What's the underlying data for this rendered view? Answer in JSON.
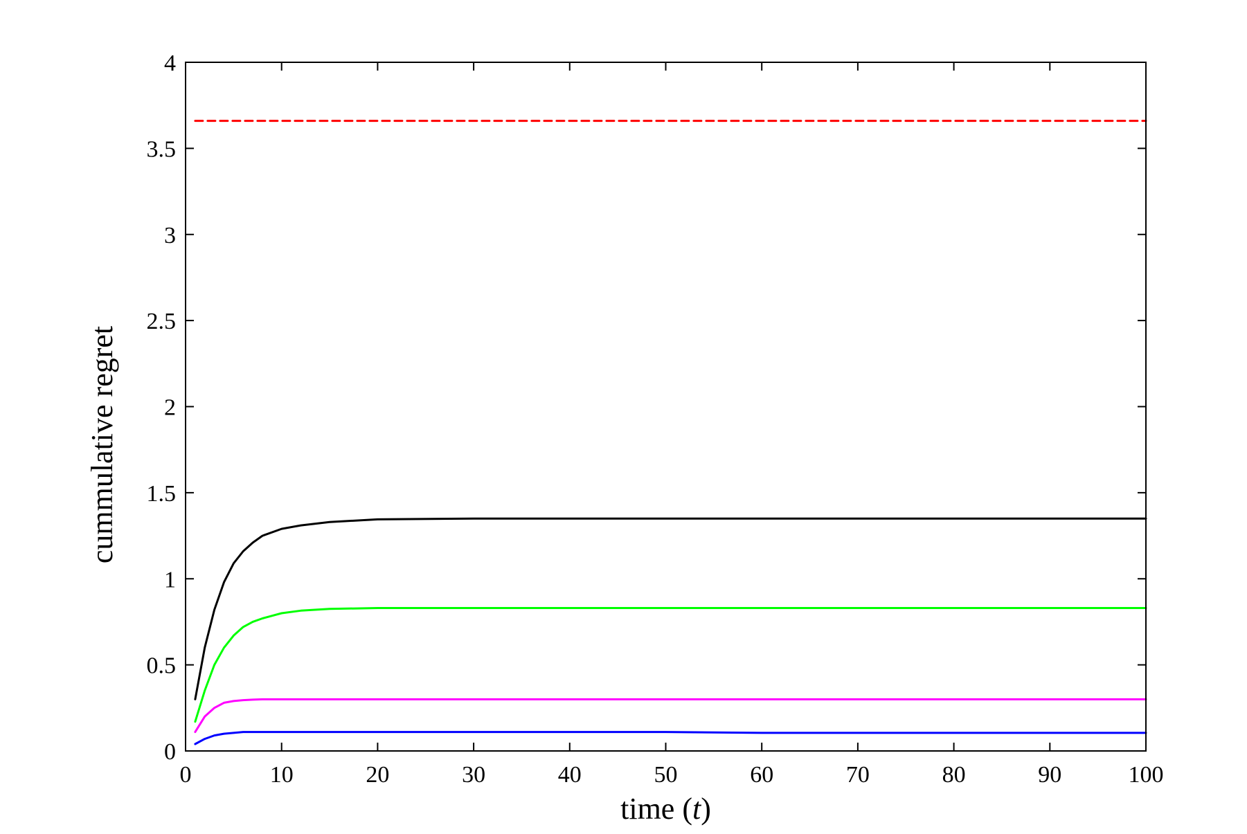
{
  "chart_data": {
    "type": "line",
    "title": "",
    "xlabel": "time (t)",
    "xlabel_parts": {
      "prefix": "time (",
      "variable": "t",
      "suffix": ")"
    },
    "ylabel": "cummulative regret",
    "xlim": [
      0,
      100
    ],
    "ylim": [
      0,
      4
    ],
    "xticks": [
      "0",
      "10",
      "20",
      "30",
      "40",
      "50",
      "60",
      "70",
      "80",
      "90",
      "100"
    ],
    "yticks": [
      "0",
      "0.5",
      "1",
      "1.5",
      "2",
      "2.5",
      "3",
      "3.5",
      "4"
    ],
    "grid": false,
    "legend": "none",
    "x": [
      1,
      2,
      3,
      4,
      5,
      6,
      7,
      8,
      10,
      12,
      15,
      20,
      30,
      50,
      60,
      100
    ],
    "series": [
      {
        "color": "#ff0000",
        "style": "dashed",
        "values": [
          3.66,
          3.66,
          3.66,
          3.66,
          3.66,
          3.66,
          3.66,
          3.66,
          3.66,
          3.66,
          3.66,
          3.66,
          3.66,
          3.66,
          3.66,
          3.66
        ]
      },
      {
        "color": "#000000",
        "style": "solid",
        "values": [
          0.3,
          0.6,
          0.82,
          0.98,
          1.09,
          1.16,
          1.21,
          1.25,
          1.29,
          1.31,
          1.33,
          1.345,
          1.35,
          1.35,
          1.35,
          1.35
        ]
      },
      {
        "color": "#00ff00",
        "style": "solid",
        "values": [
          0.17,
          0.35,
          0.5,
          0.6,
          0.67,
          0.72,
          0.75,
          0.77,
          0.8,
          0.815,
          0.825,
          0.83,
          0.83,
          0.83,
          0.83,
          0.83
        ]
      },
      {
        "color": "#ff00ff",
        "style": "solid",
        "values": [
          0.11,
          0.2,
          0.25,
          0.28,
          0.29,
          0.295,
          0.298,
          0.3,
          0.3,
          0.3,
          0.3,
          0.3,
          0.3,
          0.3,
          0.3,
          0.3
        ]
      },
      {
        "color": "#0000ff",
        "style": "solid",
        "values": [
          0.04,
          0.07,
          0.09,
          0.1,
          0.105,
          0.11,
          0.11,
          0.11,
          0.11,
          0.11,
          0.11,
          0.11,
          0.11,
          0.11,
          0.105,
          0.105
        ]
      }
    ]
  }
}
